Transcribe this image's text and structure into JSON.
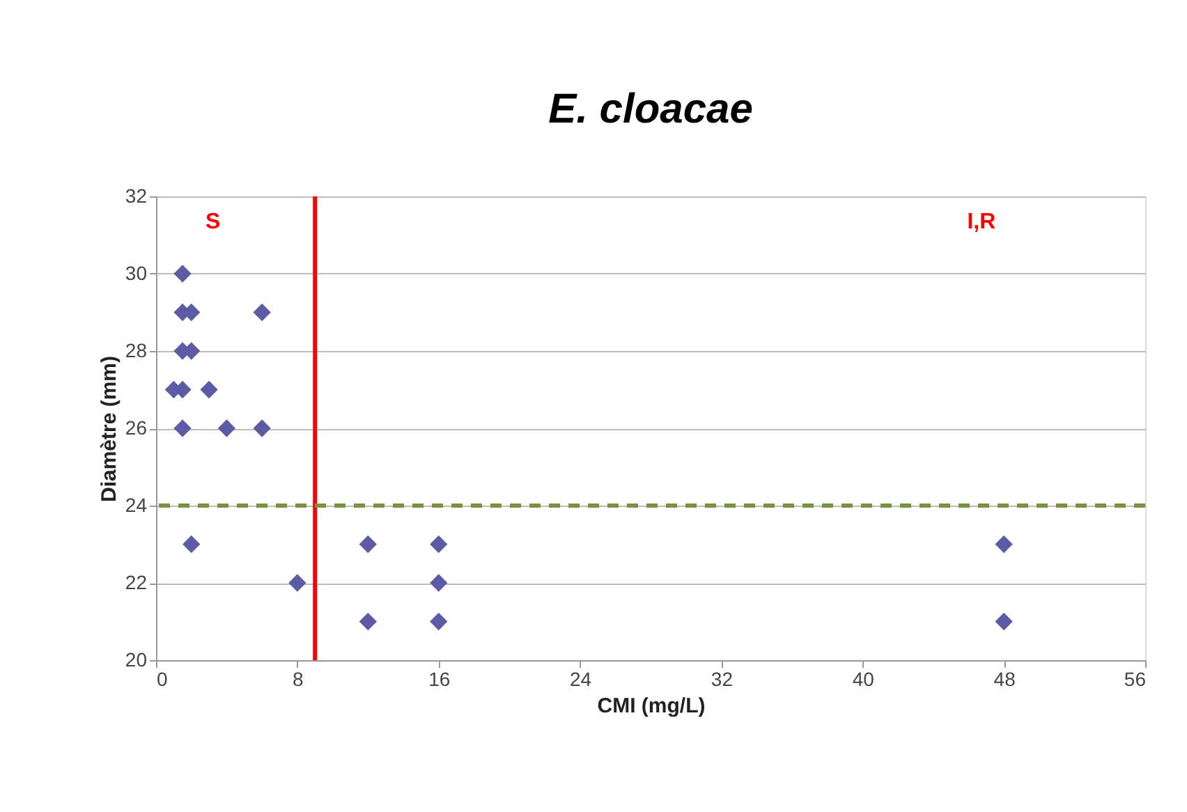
{
  "chart_data": {
    "type": "scatter",
    "title": "E. cloacae",
    "xlabel": "CMI (mg/L)",
    "ylabel": "Diamètre (mm)",
    "x": [
      1.5,
      1.5,
      2,
      6,
      1.5,
      2,
      1,
      1.5,
      3,
      1.5,
      4,
      6,
      2,
      12,
      16,
      48,
      8,
      16,
      12,
      16,
      48
    ],
    "series": [
      {
        "color": "#5b5ba6",
        "values": [
          30,
          29,
          29,
          29,
          28,
          28,
          27,
          27,
          27,
          26,
          26,
          26,
          23,
          23,
          23,
          23,
          22,
          22,
          21,
          21,
          21
        ]
      }
    ],
    "xlim": [
      0,
      56
    ],
    "xticks": [
      0,
      8,
      16,
      24,
      32,
      40,
      48,
      56
    ],
    "ylim": [
      20,
      32
    ],
    "yticks": [
      20,
      22,
      24,
      26,
      28,
      30,
      32
    ],
    "ref_lines": [
      {
        "axis": "x",
        "value": 9,
        "color": "#ff0000",
        "line_style": "solid"
      },
      {
        "axis": "y",
        "value": 24,
        "color": "#77933c",
        "line_style": "dashed"
      }
    ],
    "annotations": [
      "S",
      "I,R"
    ],
    "grid": "y",
    "marker": "diamond"
  }
}
